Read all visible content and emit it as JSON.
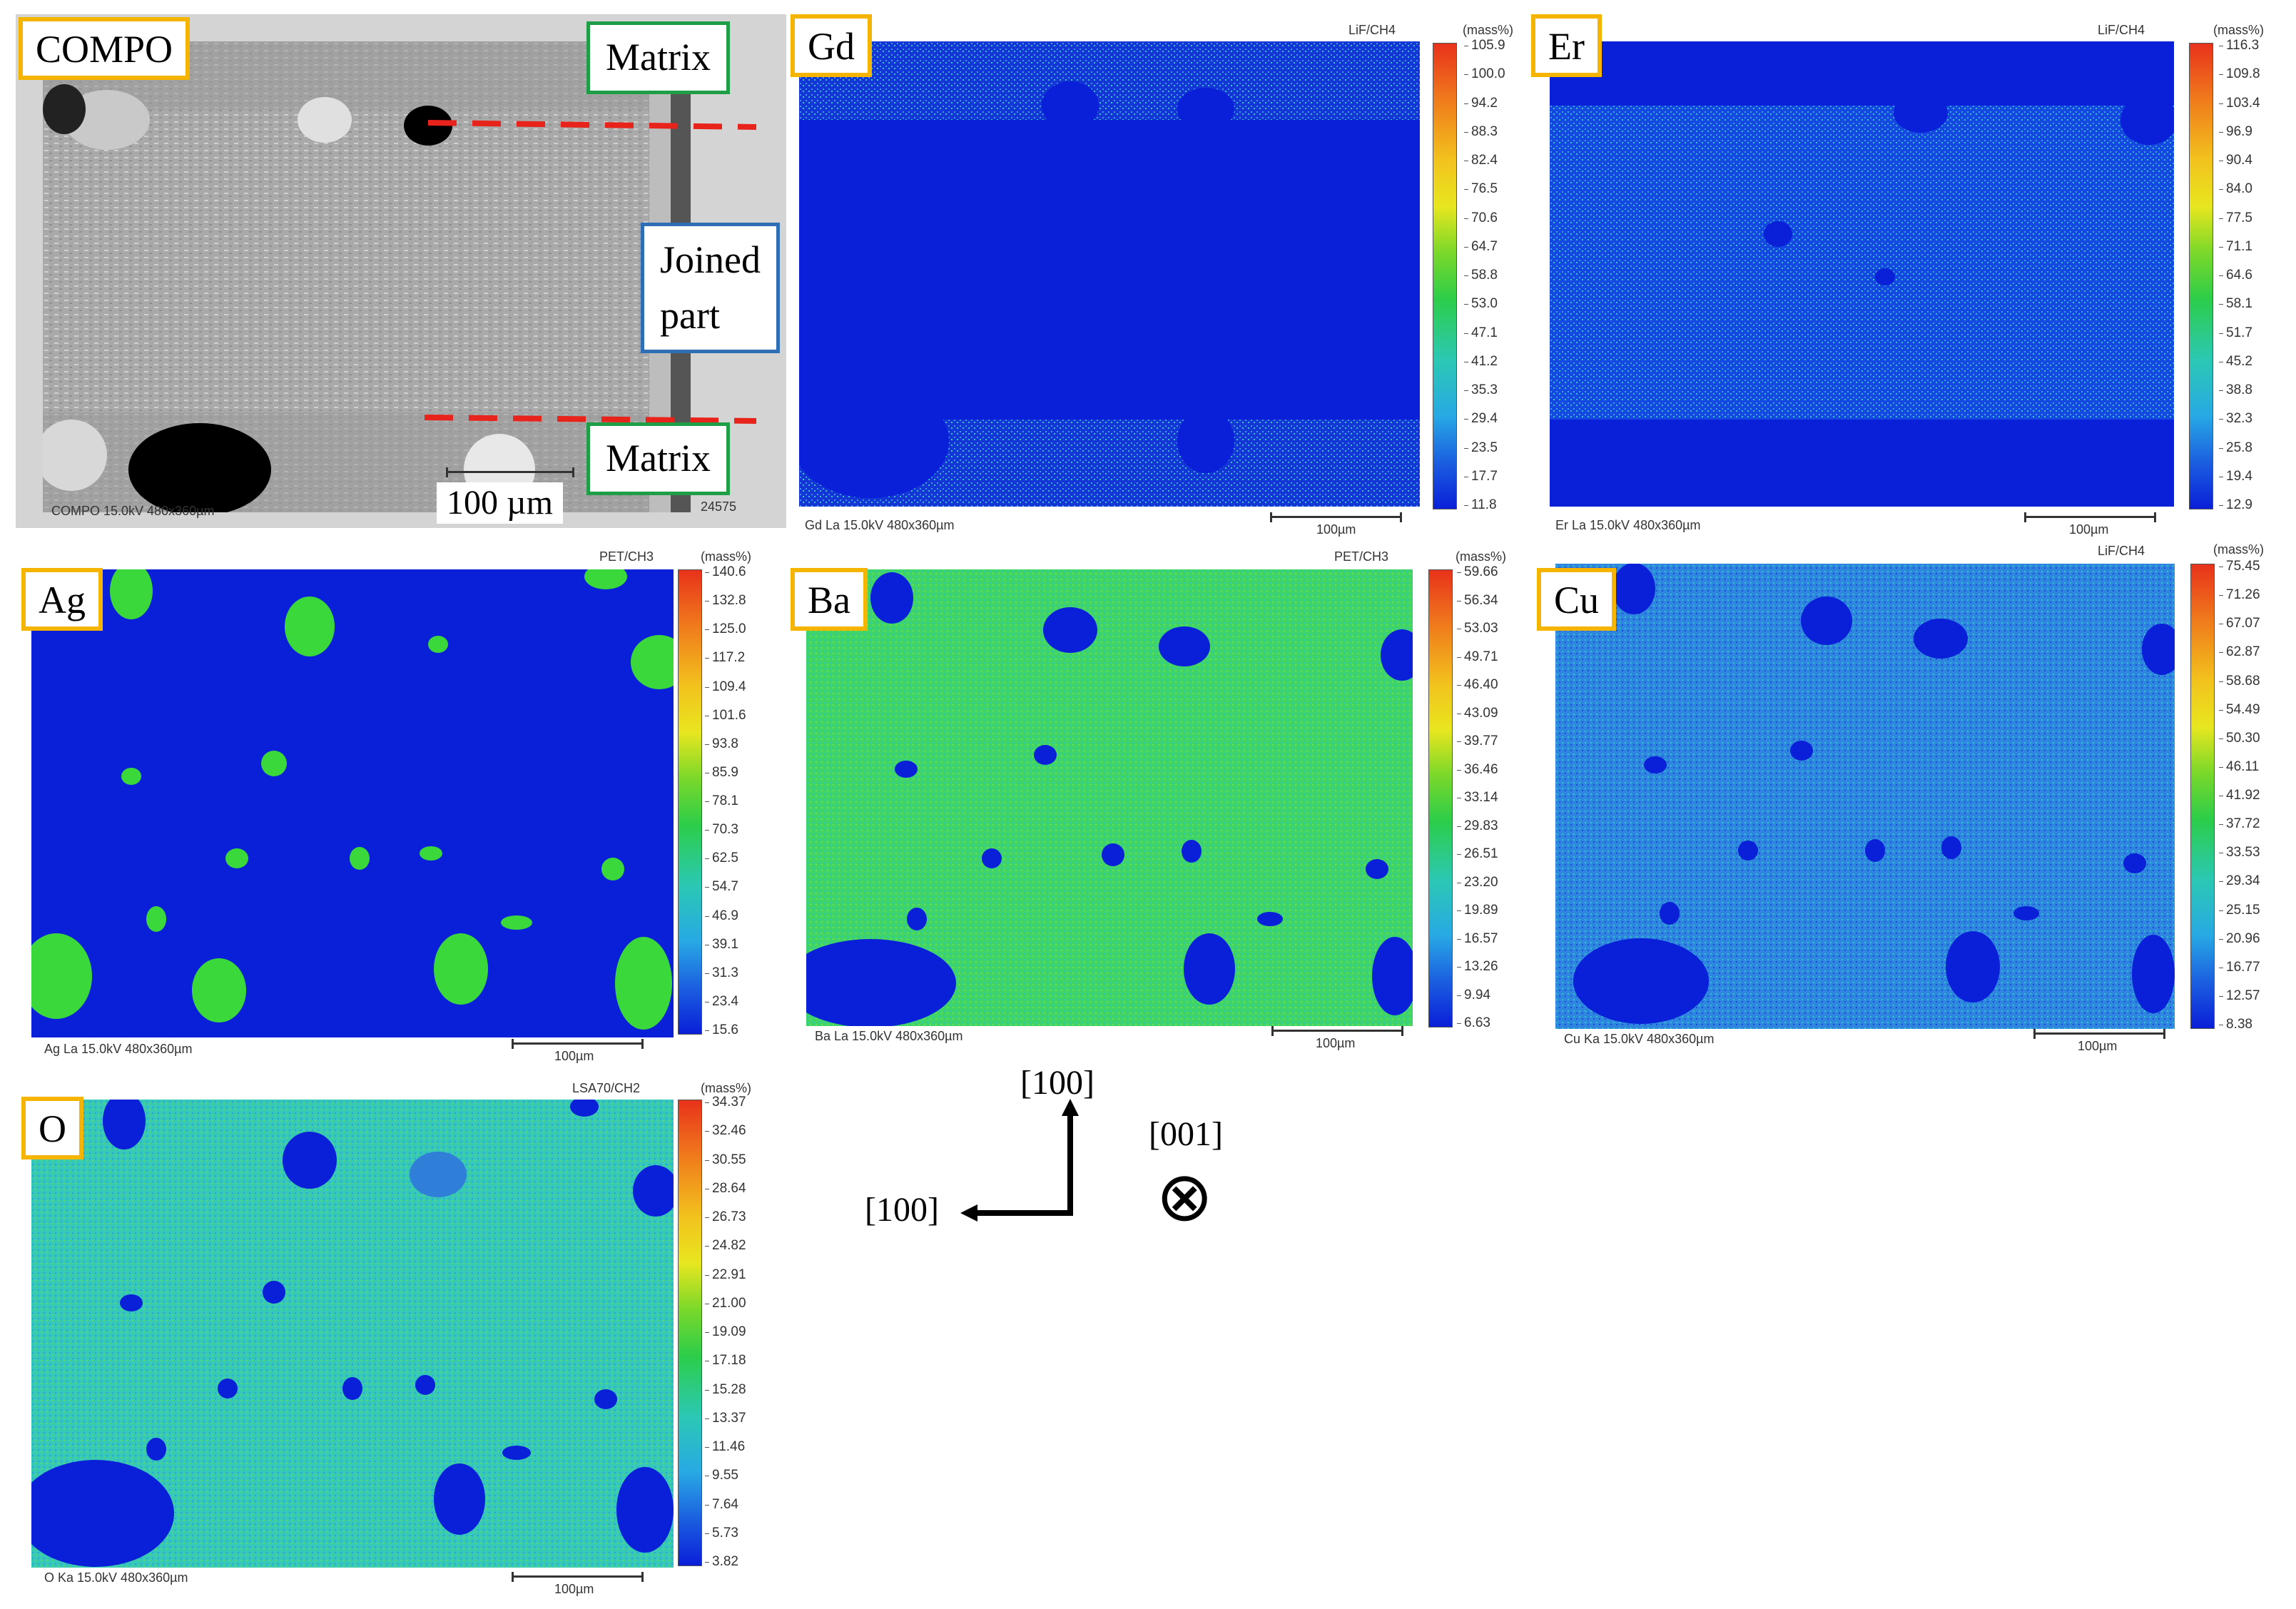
{
  "compo": {
    "label": "COMPO",
    "info": "COMPO 15.0kV 480x360µm",
    "scale_label": "100 µm",
    "side_value": "24575",
    "matrix_top": "Matrix",
    "joined_part": "Joined\npart",
    "matrix_bottom": "Matrix",
    "colors": {
      "matrix_border": "#1f9e47",
      "joined_border": "#2f6db5",
      "dashed": "#e8231b"
    }
  },
  "maps": [
    {
      "label": "Gd",
      "crystal": "LiF/CH4",
      "unit": "(mass%)",
      "info": "Gd La 15.0kV 480x360µm",
      "scale": "100µm",
      "ticks": [
        "105.9",
        "100.0",
        "94.2",
        "88.3",
        "82.4",
        "76.5",
        "70.6",
        "64.7",
        "58.8",
        "53.0",
        "47.1",
        "41.2",
        "35.3",
        "29.4",
        "23.5",
        "17.7",
        "11.8"
      ]
    },
    {
      "label": "Er",
      "crystal": "LiF/CH4",
      "unit": "(mass%)",
      "info": "Er La 15.0kV 480x360µm",
      "scale": "100µm",
      "ticks": [
        "116.3",
        "109.8",
        "103.4",
        "96.9",
        "90.4",
        "84.0",
        "77.5",
        "71.1",
        "64.6",
        "58.1",
        "51.7",
        "45.2",
        "38.8",
        "32.3",
        "25.8",
        "19.4",
        "12.9"
      ]
    },
    {
      "label": "Ag",
      "crystal": "PET/CH3",
      "unit": "(mass%)",
      "info": "Ag La 15.0kV 480x360µm",
      "scale": "100µm",
      "ticks": [
        "140.6",
        "132.8",
        "125.0",
        "117.2",
        "109.4",
        "101.6",
        "93.8",
        "85.9",
        "78.1",
        "70.3",
        "62.5",
        "54.7",
        "46.9",
        "39.1",
        "31.3",
        "23.4",
        "15.6"
      ]
    },
    {
      "label": "Ba",
      "crystal": "PET/CH3",
      "unit": "(mass%)",
      "info": "Ba La 15.0kV 480x360µm",
      "scale": "100µm",
      "ticks": [
        "59.66",
        "56.34",
        "53.03",
        "49.71",
        "46.40",
        "43.09",
        "39.77",
        "36.46",
        "33.14",
        "29.83",
        "26.51",
        "23.20",
        "19.89",
        "16.57",
        "13.26",
        "9.94",
        "6.63"
      ]
    },
    {
      "label": "Cu",
      "crystal": "LiF/CH4",
      "unit": "(mass%)",
      "info": "Cu Ka 15.0kV 480x360µm",
      "scale": "100µm",
      "ticks": [
        "75.45",
        "71.26",
        "67.07",
        "62.87",
        "58.68",
        "54.49",
        "50.30",
        "46.11",
        "41.92",
        "37.72",
        "33.53",
        "29.34",
        "25.15",
        "20.96",
        "16.77",
        "12.57",
        "8.38"
      ]
    },
    {
      "label": "O",
      "crystal": "LSA70/CH2",
      "unit": "(mass%)",
      "info": "O Ka 15.0kV 480x360µm",
      "scale": "100µm",
      "ticks": [
        "34.37",
        "32.46",
        "30.55",
        "28.64",
        "26.73",
        "24.82",
        "22.91",
        "21.00",
        "19.09",
        "17.18",
        "15.28",
        "13.37",
        "11.46",
        "9.55",
        "7.64",
        "5.73",
        "3.82"
      ]
    }
  ],
  "orientation": {
    "up": "[100]",
    "left": "[100]",
    "out": "[001]",
    "symbol": "⊗"
  }
}
